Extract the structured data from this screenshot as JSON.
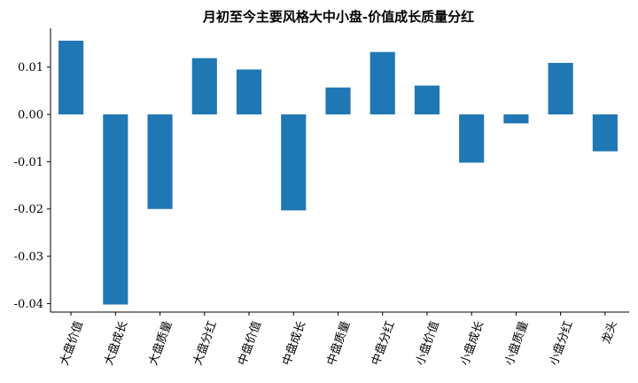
{
  "chart_data": {
    "type": "bar",
    "title": "月初至今主要风格大中小盘-价值成长质量分红",
    "xlabel": "",
    "ylabel": "",
    "categories": [
      "大盘价值",
      "大盘成长",
      "大盘质量",
      "大盘分红",
      "中盘价值",
      "中盘成长",
      "中盘质量",
      "中盘分红",
      "小盘价值",
      "小盘成长",
      "小盘质量",
      "小盘分红",
      "龙头"
    ],
    "values": [
      0.0156,
      -0.0402,
      -0.02,
      0.0119,
      0.0095,
      -0.0203,
      0.0057,
      0.0132,
      0.0061,
      -0.0102,
      -0.0019,
      0.0109,
      -0.0078
    ],
    "ylim": [
      -0.0418,
      0.0182
    ],
    "yticks": [
      0.01,
      0.0,
      -0.01,
      -0.02,
      -0.03,
      -0.04
    ],
    "ytick_labels": [
      "0.01",
      "0.00",
      "-0.01",
      "-0.02",
      "-0.03",
      "-0.04"
    ],
    "bar_color": "#1f77b4",
    "grid": false,
    "legend": "none"
  }
}
